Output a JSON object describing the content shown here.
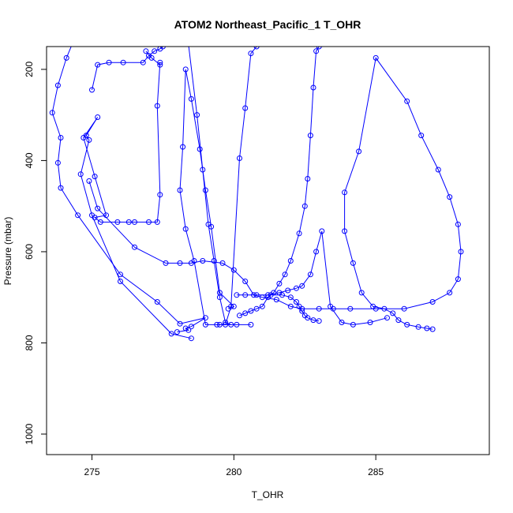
{
  "chart_data": {
    "type": "line",
    "title": "ATOM2 Northeast_Pacific_1 T_OHR",
    "xlabel": "T_OHR",
    "ylabel": "Pressure (mbar)",
    "xlim": [
      273.4,
      289.0
    ],
    "ylim": [
      1045,
      150
    ],
    "y_reversed": true,
    "x_ticks": [
      275,
      280,
      285
    ],
    "y_ticks": [
      200,
      400,
      600,
      800,
      1000
    ],
    "grid": false,
    "marker": "open-circle",
    "series_color": "#0000ff",
    "series": [
      {
        "x": [
          278.0,
          278.4,
          278.3,
          278.5,
          279.0,
          278.1,
          277.3,
          276.0,
          274.5,
          273.9,
          273.8,
          273.9,
          273.6,
          273.8,
          274.1,
          274.4
        ],
        "y": [
          776,
          772,
          768,
          764,
          745,
          758,
          710,
          650,
          520,
          460,
          405,
          350,
          295,
          235,
          175,
          130
        ]
      },
      {
        "x": [
          278.5,
          277.8,
          276.0,
          275.0,
          274.6,
          274.9,
          274.8,
          275.2,
          274.7,
          275.1,
          275.5,
          275.1,
          275.3,
          275.9,
          276.3,
          276.5,
          277.0,
          277.3,
          277.4,
          277.3,
          277.4,
          277.4,
          277.1,
          276.9
        ],
        "y": [
          790,
          780,
          665,
          520,
          430,
          355,
          345,
          305,
          350,
          435,
          520,
          525,
          535,
          535,
          535,
          535,
          535,
          535,
          475,
          280,
          185,
          190,
          175,
          160
        ]
      },
      {
        "x": [
          275.0,
          275.2,
          275.6,
          276.1,
          276.8,
          277.0,
          277.2,
          277.4,
          277.5
        ],
        "y": [
          245,
          190,
          185,
          185,
          185,
          170,
          160,
          155,
          150
        ]
      },
      {
        "x": [
          274.9,
          275.2,
          276.5,
          277.6,
          278.1,
          278.5,
          278.9,
          279.6,
          280.0,
          280.4,
          280.7,
          281.0,
          281.5,
          282.0,
          282.4,
          283.0,
          283.5,
          284.1,
          285.0,
          286.0,
          287.0,
          287.6,
          287.9,
          288.0,
          287.9,
          287.6,
          287.2,
          286.6,
          286.1,
          285.0,
          284.4,
          283.9,
          283.9,
          284.2,
          284.5,
          284.9,
          285.3,
          285.6,
          285.8,
          286.1,
          286.5,
          286.8,
          287.0
        ],
        "y": [
          445,
          505,
          590,
          625,
          625,
          625,
          620,
          625,
          640,
          665,
          695,
          700,
          705,
          720,
          725,
          725,
          725,
          725,
          725,
          725,
          710,
          690,
          660,
          600,
          540,
          480,
          420,
          345,
          270,
          175,
          380,
          470,
          555,
          625,
          690,
          720,
          725,
          735,
          750,
          760,
          765,
          768,
          770
        ]
      },
      {
        "x": [
          279.8,
          280.0,
          279.5,
          279.2,
          279.0,
          278.8,
          278.5,
          278.3,
          278.2,
          278.1,
          278.3,
          278.6,
          279.0,
          279.5,
          280.1,
          280.6
        ],
        "y": [
          725,
          720,
          690,
          545,
          465,
          375,
          265,
          200,
          370,
          465,
          550,
          620,
          760,
          760,
          760,
          760
        ]
      },
      {
        "x": [
          279.4,
          279.7,
          279.9,
          280.2,
          280.4,
          280.6,
          280.8,
          280.9
        ],
        "y": [
          760,
          760,
          720,
          395,
          285,
          165,
          150,
          145
        ]
      },
      {
        "x": [
          280.2,
          280.4,
          280.6,
          280.8,
          281.0,
          281.2,
          281.4,
          281.6,
          281.8,
          282.0,
          282.3,
          282.5,
          282.6,
          282.7,
          282.8,
          282.9,
          283.0,
          283.1
        ],
        "y": [
          740,
          735,
          730,
          725,
          720,
          700,
          690,
          670,
          650,
          620,
          560,
          500,
          440,
          345,
          240,
          160,
          150,
          145
        ]
      },
      {
        "x": [
          279.9,
          279.7,
          279.5,
          279.3,
          279.1,
          278.9,
          278.7,
          278.4
        ],
        "y": [
          760,
          755,
          700,
          620,
          540,
          420,
          300,
          145
        ]
      },
      {
        "x": [
          281.2,
          281.6,
          281.9,
          282.2,
          282.4,
          282.7,
          282.9,
          283.1,
          283.4,
          283.8,
          284.2,
          284.8,
          285.4
        ],
        "y": [
          695,
          690,
          685,
          680,
          675,
          650,
          600,
          555,
          720,
          755,
          760,
          755,
          745
        ]
      },
      {
        "x": [
          280.1,
          280.4,
          280.8,
          281.3,
          281.7,
          282.0,
          282.2,
          282.3,
          282.4,
          282.5,
          282.6,
          282.8,
          283.0
        ],
        "y": [
          695,
          695,
          695,
          695,
          695,
          700,
          710,
          720,
          730,
          740,
          745,
          750,
          752
        ]
      }
    ]
  }
}
